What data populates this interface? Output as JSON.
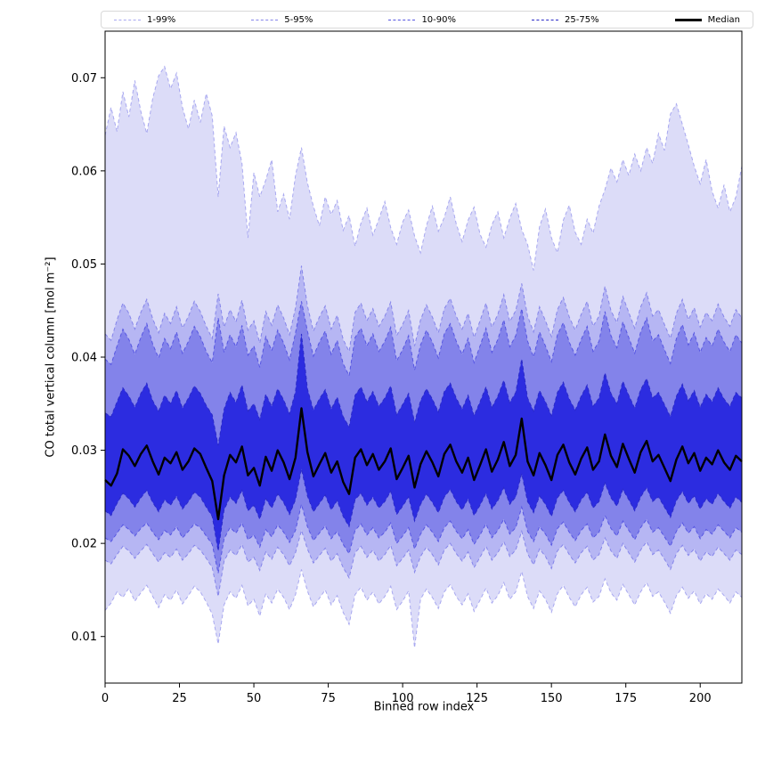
{
  "chart_data": {
    "type": "area",
    "title": "",
    "xlabel": "Binned row index",
    "ylabel": "CO total vertical column [mol m⁻²]",
    "xlim": [
      0,
      214
    ],
    "ylim": [
      0.005,
      0.075
    ],
    "xticks": [
      0,
      25,
      50,
      75,
      100,
      125,
      150,
      175,
      200
    ],
    "yticks": [
      0.01,
      0.02,
      0.03,
      0.04,
      0.05,
      0.06,
      0.07
    ],
    "x_step": 2,
    "grid": false,
    "legend_position": "top",
    "bands": [
      {
        "label": "1-99%",
        "fill": "#dcdcf8",
        "edge": "#a8a8f0",
        "lower": [
          0.0128,
          0.0136,
          0.0148,
          0.0142,
          0.0152,
          0.0138,
          0.0147,
          0.0155,
          0.0143,
          0.0131,
          0.0145,
          0.0139,
          0.015,
          0.0135,
          0.0144,
          0.0154,
          0.0148,
          0.0137,
          0.0124,
          0.0092,
          0.0134,
          0.0148,
          0.0141,
          0.0155,
          0.0133,
          0.014,
          0.0122,
          0.0146,
          0.0136,
          0.0151,
          0.0142,
          0.0129,
          0.0145,
          0.0172,
          0.0149,
          0.0132,
          0.0141,
          0.015,
          0.0134,
          0.0144,
          0.0126,
          0.0113,
          0.0145,
          0.0153,
          0.0139,
          0.0148,
          0.0135,
          0.0143,
          0.0154,
          0.0129,
          0.0138,
          0.0149,
          0.0088,
          0.014,
          0.0151,
          0.0142,
          0.013,
          0.0148,
          0.0156,
          0.0143,
          0.0134,
          0.0146,
          0.0127,
          0.0139,
          0.0152,
          0.0136,
          0.0144,
          0.0158,
          0.014,
          0.0148,
          0.017,
          0.0143,
          0.013,
          0.0149,
          0.014,
          0.0126,
          0.0146,
          0.0155,
          0.0142,
          0.0132,
          0.0145,
          0.0153,
          0.0137,
          0.0143,
          0.0162,
          0.0147,
          0.0139,
          0.0156,
          0.0145,
          0.0134,
          0.0148,
          0.0158,
          0.0143,
          0.0148,
          0.0137,
          0.0125,
          0.0144,
          0.0153,
          0.0141,
          0.0149,
          0.0135,
          0.0146,
          0.014,
          0.0151,
          0.0144,
          0.0136,
          0.0148,
          0.0142
        ],
        "upper": [
          0.0638,
          0.0668,
          0.0642,
          0.0685,
          0.0658,
          0.0697,
          0.0664,
          0.064,
          0.0678,
          0.0702,
          0.0712,
          0.0688,
          0.0705,
          0.0668,
          0.0645,
          0.0676,
          0.0652,
          0.0683,
          0.0659,
          0.0572,
          0.0648,
          0.0625,
          0.0641,
          0.0608,
          0.0528,
          0.0598,
          0.0572,
          0.059,
          0.0612,
          0.0556,
          0.0575,
          0.0548,
          0.0595,
          0.0625,
          0.0587,
          0.0562,
          0.0541,
          0.0572,
          0.0553,
          0.0568,
          0.0536,
          0.0552,
          0.0519,
          0.0544,
          0.056,
          0.0531,
          0.0548,
          0.0567,
          0.0539,
          0.0521,
          0.0545,
          0.0558,
          0.053,
          0.0512,
          0.0541,
          0.0562,
          0.0535,
          0.055,
          0.0572,
          0.0543,
          0.0524,
          0.0547,
          0.0561,
          0.0532,
          0.0518,
          0.0542,
          0.0556,
          0.0528,
          0.0549,
          0.0565,
          0.0537,
          0.0521,
          0.0493,
          0.054,
          0.0559,
          0.0528,
          0.0512,
          0.0547,
          0.0563,
          0.0534,
          0.0521,
          0.0548,
          0.0533,
          0.0562,
          0.058,
          0.0603,
          0.0588,
          0.0612,
          0.0595,
          0.0618,
          0.06,
          0.0625,
          0.0608,
          0.064,
          0.0622,
          0.0661,
          0.0672,
          0.065,
          0.0628,
          0.0605,
          0.0586,
          0.0612,
          0.0578,
          0.056,
          0.0585,
          0.0556,
          0.0572,
          0.0605
        ]
      },
      {
        "label": "5-95%",
        "fill": "#b6b6f3",
        "edge": "#8585ea",
        "lower": [
          0.0182,
          0.0178,
          0.0188,
          0.0197,
          0.0192,
          0.0184,
          0.0192,
          0.0199,
          0.0189,
          0.018,
          0.019,
          0.0185,
          0.0194,
          0.0182,
          0.0189,
          0.0198,
          0.0193,
          0.0184,
          0.0174,
          0.0143,
          0.0181,
          0.0193,
          0.0187,
          0.0199,
          0.018,
          0.0185,
          0.0171,
          0.0191,
          0.0183,
          0.0196,
          0.0188,
          0.0176,
          0.019,
          0.0214,
          0.0194,
          0.0179,
          0.0187,
          0.0195,
          0.0181,
          0.0189,
          0.0174,
          0.0163,
          0.019,
          0.0197,
          0.0185,
          0.0193,
          0.0181,
          0.0188,
          0.0198,
          0.0176,
          0.0184,
          0.0193,
          0.0169,
          0.0186,
          0.0196,
          0.0188,
          0.0177,
          0.0193,
          0.02,
          0.0189,
          0.0181,
          0.0191,
          0.0174,
          0.0185,
          0.0197,
          0.0182,
          0.019,
          0.0202,
          0.0186,
          0.0193,
          0.0213,
          0.0189,
          0.0177,
          0.0194,
          0.0186,
          0.0173,
          0.0192,
          0.0199,
          0.0188,
          0.0179,
          0.019,
          0.0197,
          0.0182,
          0.0188,
          0.0206,
          0.0192,
          0.0184,
          0.02,
          0.019,
          0.018,
          0.0193,
          0.0202,
          0.0188,
          0.0193,
          0.0183,
          0.0172,
          0.0189,
          0.0198,
          0.0187,
          0.0194,
          0.0181,
          0.0191,
          0.0186,
          0.0196,
          0.0189,
          0.0182,
          0.0193,
          0.0188
        ],
        "upper": [
          0.0425,
          0.0418,
          0.044,
          0.0458,
          0.0447,
          0.043,
          0.0448,
          0.0462,
          0.0441,
          0.0426,
          0.0447,
          0.0436,
          0.0454,
          0.0431,
          0.0444,
          0.046,
          0.0449,
          0.0433,
          0.042,
          0.0468,
          0.0432,
          0.0451,
          0.0438,
          0.0461,
          0.0429,
          0.0439,
          0.0415,
          0.0449,
          0.0434,
          0.0456,
          0.0442,
          0.0424,
          0.0453,
          0.0498,
          0.0455,
          0.0428,
          0.0443,
          0.0455,
          0.043,
          0.0445,
          0.0419,
          0.0406,
          0.0448,
          0.0458,
          0.0439,
          0.0452,
          0.0433,
          0.0444,
          0.0459,
          0.0423,
          0.0435,
          0.045,
          0.0412,
          0.044,
          0.0456,
          0.0443,
          0.0426,
          0.0452,
          0.0463,
          0.0444,
          0.043,
          0.0447,
          0.0421,
          0.0439,
          0.0458,
          0.0432,
          0.0446,
          0.0467,
          0.0438,
          0.045,
          0.0479,
          0.0444,
          0.0427,
          0.0454,
          0.0439,
          0.0422,
          0.0451,
          0.0464,
          0.0443,
          0.0429,
          0.0446,
          0.046,
          0.0433,
          0.0444,
          0.0476,
          0.045,
          0.0437,
          0.0465,
          0.0448,
          0.0431,
          0.0454,
          0.0469,
          0.0444,
          0.0451,
          0.0435,
          0.042,
          0.0447,
          0.0462,
          0.044,
          0.0453,
          0.0432,
          0.0448,
          0.0439,
          0.0457,
          0.0443,
          0.0433,
          0.0451,
          0.0442
        ]
      },
      {
        "label": "10-90%",
        "fill": "#8383ea",
        "edge": "#5656e2",
        "lower": [
          0.0206,
          0.0202,
          0.0211,
          0.022,
          0.0215,
          0.0208,
          0.0216,
          0.0222,
          0.0212,
          0.0204,
          0.0214,
          0.0209,
          0.0218,
          0.0206,
          0.0213,
          0.0221,
          0.0217,
          0.0208,
          0.0199,
          0.0168,
          0.0205,
          0.0217,
          0.0211,
          0.0222,
          0.0204,
          0.0209,
          0.0196,
          0.0215,
          0.0207,
          0.022,
          0.0212,
          0.0201,
          0.0214,
          0.0242,
          0.0218,
          0.0203,
          0.0211,
          0.0219,
          0.0205,
          0.0213,
          0.0199,
          0.0189,
          0.0214,
          0.0221,
          0.0209,
          0.0217,
          0.0206,
          0.0212,
          0.0222,
          0.02,
          0.0208,
          0.0217,
          0.0194,
          0.021,
          0.022,
          0.0212,
          0.0202,
          0.0217,
          0.0224,
          0.0213,
          0.0205,
          0.0215,
          0.0199,
          0.0209,
          0.0221,
          0.0206,
          0.0214,
          0.0226,
          0.021,
          0.0217,
          0.0239,
          0.0213,
          0.0202,
          0.0218,
          0.021,
          0.0198,
          0.0216,
          0.0223,
          0.0212,
          0.0203,
          0.0214,
          0.0221,
          0.0206,
          0.0212,
          0.023,
          0.0216,
          0.0208,
          0.0224,
          0.0214,
          0.0204,
          0.0217,
          0.0226,
          0.0212,
          0.0217,
          0.0207,
          0.0197,
          0.0213,
          0.0222,
          0.0211,
          0.0218,
          0.0205,
          0.0215,
          0.021,
          0.022,
          0.0213,
          0.0206,
          0.0217,
          0.0212
        ],
        "upper": [
          0.0398,
          0.0392,
          0.0412,
          0.043,
          0.0419,
          0.0403,
          0.0421,
          0.0436,
          0.0414,
          0.0399,
          0.042,
          0.0409,
          0.0427,
          0.0404,
          0.0417,
          0.0433,
          0.0422,
          0.0406,
          0.0394,
          0.0442,
          0.0405,
          0.0424,
          0.0411,
          0.0434,
          0.0402,
          0.0412,
          0.0389,
          0.0422,
          0.0407,
          0.0429,
          0.0415,
          0.0397,
          0.0426,
          0.046,
          0.0428,
          0.0401,
          0.0416,
          0.0428,
          0.0403,
          0.0418,
          0.0393,
          0.038,
          0.0421,
          0.0431,
          0.0412,
          0.0425,
          0.0406,
          0.0417,
          0.0432,
          0.0396,
          0.0408,
          0.0423,
          0.0386,
          0.0413,
          0.0429,
          0.0416,
          0.0399,
          0.0425,
          0.0436,
          0.0417,
          0.0403,
          0.042,
          0.0394,
          0.0412,
          0.0431,
          0.0405,
          0.0419,
          0.044,
          0.0411,
          0.0423,
          0.0452,
          0.0417,
          0.04,
          0.0427,
          0.0412,
          0.0395,
          0.0424,
          0.0437,
          0.0416,
          0.0402,
          0.0419,
          0.0433,
          0.0406,
          0.0417,
          0.0449,
          0.0423,
          0.041,
          0.0438,
          0.0421,
          0.0404,
          0.0427,
          0.0442,
          0.0417,
          0.0424,
          0.0408,
          0.0393,
          0.042,
          0.0435,
          0.0413,
          0.0426,
          0.0405,
          0.0421,
          0.0412,
          0.043,
          0.0416,
          0.0406,
          0.0424,
          0.0415
        ]
      },
      {
        "label": "25-75%",
        "fill": "#2c2ce0",
        "edge": "#2a2ac8",
        "lower": [
          0.0235,
          0.023,
          0.0243,
          0.0254,
          0.0248,
          0.0239,
          0.0249,
          0.0257,
          0.0244,
          0.0234,
          0.0247,
          0.0241,
          0.0251,
          0.0237,
          0.0245,
          0.0255,
          0.025,
          0.0239,
          0.0229,
          0.0192,
          0.0236,
          0.025,
          0.0243,
          0.0257,
          0.0235,
          0.0241,
          0.0226,
          0.0248,
          0.0238,
          0.0253,
          0.0244,
          0.0231,
          0.0247,
          0.028,
          0.0251,
          0.0234,
          0.0243,
          0.0252,
          0.0236,
          0.0246,
          0.0229,
          0.0218,
          0.0247,
          0.0254,
          0.0241,
          0.025,
          0.0238,
          0.0245,
          0.0256,
          0.0231,
          0.024,
          0.025,
          0.0224,
          0.0242,
          0.0253,
          0.0244,
          0.0233,
          0.025,
          0.0258,
          0.0245,
          0.0236,
          0.0248,
          0.023,
          0.0241,
          0.0254,
          0.0237,
          0.0246,
          0.026,
          0.0242,
          0.025,
          0.0275,
          0.0245,
          0.0233,
          0.0251,
          0.0242,
          0.0229,
          0.0249,
          0.0257,
          0.0244,
          0.0234,
          0.0247,
          0.0255,
          0.0238,
          0.0245,
          0.0265,
          0.0249,
          0.024,
          0.0258,
          0.0247,
          0.0235,
          0.025,
          0.026,
          0.0245,
          0.025,
          0.0239,
          0.0228,
          0.0246,
          0.0256,
          0.0243,
          0.0251,
          0.0237,
          0.0248,
          0.0242,
          0.0254,
          0.0245,
          0.0238,
          0.025,
          0.0244
        ],
        "upper": [
          0.034,
          0.0336,
          0.0352,
          0.0367,
          0.0358,
          0.0346,
          0.0361,
          0.0372,
          0.0353,
          0.0342,
          0.0359,
          0.035,
          0.0364,
          0.0345,
          0.0356,
          0.0369,
          0.0361,
          0.0348,
          0.0338,
          0.0305,
          0.0344,
          0.0362,
          0.0351,
          0.037,
          0.0342,
          0.035,
          0.0333,
          0.036,
          0.0347,
          0.0366,
          0.0354,
          0.0339,
          0.0363,
          0.0425,
          0.0366,
          0.0343,
          0.0355,
          0.0365,
          0.0344,
          0.0357,
          0.0336,
          0.0325,
          0.0359,
          0.0368,
          0.0352,
          0.0363,
          0.0347,
          0.0356,
          0.0369,
          0.0338,
          0.0349,
          0.0361,
          0.033,
          0.0353,
          0.0366,
          0.0355,
          0.0341,
          0.0363,
          0.0372,
          0.0356,
          0.0344,
          0.0359,
          0.0337,
          0.0352,
          0.0368,
          0.0346,
          0.0358,
          0.0375,
          0.0351,
          0.0362,
          0.0398,
          0.0356,
          0.0342,
          0.0364,
          0.0352,
          0.0337,
          0.0362,
          0.0373,
          0.0355,
          0.0343,
          0.0358,
          0.037,
          0.0347,
          0.0356,
          0.0383,
          0.0361,
          0.035,
          0.0374,
          0.0359,
          0.0345,
          0.0365,
          0.0377,
          0.0356,
          0.0362,
          0.0349,
          0.0336,
          0.0358,
          0.0371,
          0.0353,
          0.0364,
          0.0346,
          0.036,
          0.0352,
          0.0367,
          0.0355,
          0.0347,
          0.0362,
          0.0356
        ]
      }
    ],
    "median": {
      "label": "Median",
      "color": "#000000",
      "values": [
        0.0268,
        0.0262,
        0.0275,
        0.0301,
        0.0294,
        0.0283,
        0.0296,
        0.0305,
        0.0288,
        0.0274,
        0.0292,
        0.0286,
        0.0298,
        0.0279,
        0.0288,
        0.0302,
        0.0296,
        0.0281,
        0.0267,
        0.0226,
        0.0273,
        0.0295,
        0.0287,
        0.0304,
        0.0273,
        0.0281,
        0.0262,
        0.0293,
        0.0278,
        0.03,
        0.0287,
        0.0269,
        0.0292,
        0.0345,
        0.0298,
        0.0272,
        0.0285,
        0.0297,
        0.0276,
        0.0288,
        0.0266,
        0.0253,
        0.0292,
        0.0301,
        0.0284,
        0.0296,
        0.0279,
        0.0288,
        0.0302,
        0.0269,
        0.0281,
        0.0294,
        0.026,
        0.0285,
        0.0299,
        0.0287,
        0.0272,
        0.0296,
        0.0306,
        0.0288,
        0.0276,
        0.0292,
        0.0268,
        0.0284,
        0.0301,
        0.0277,
        0.029,
        0.0309,
        0.0283,
        0.0295,
        0.0334,
        0.0288,
        0.0273,
        0.0297,
        0.0284,
        0.0268,
        0.0295,
        0.0306,
        0.0287,
        0.0274,
        0.0291,
        0.0303,
        0.0279,
        0.0288,
        0.0317,
        0.0294,
        0.0282,
        0.0307,
        0.0291,
        0.0276,
        0.0298,
        0.031,
        0.0288,
        0.0295,
        0.0281,
        0.0267,
        0.029,
        0.0304,
        0.0286,
        0.0297,
        0.0278,
        0.0292,
        0.0285,
        0.03,
        0.0287,
        0.0279,
        0.0294,
        0.0288
      ]
    }
  }
}
